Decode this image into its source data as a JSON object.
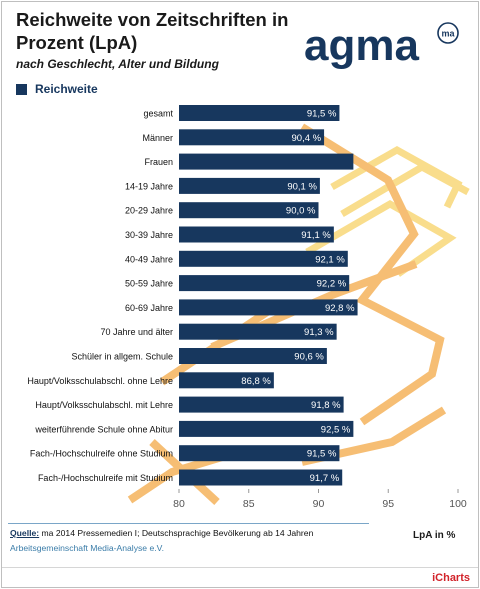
{
  "header": {
    "title": "Reichweite von Zeitschriften in Prozent (LpA)",
    "subtitle": "nach Geschlecht, Alter und Bildung"
  },
  "logo": {
    "word": "agma",
    "mark": "ma"
  },
  "legend": {
    "label": "Reichweite"
  },
  "chart_data": {
    "type": "bar",
    "orientation": "horizontal",
    "categories": [
      "gesamt",
      "Männer",
      "Frauen",
      "14-19 Jahre",
      "20-29 Jahre",
      "30-39 Jahre",
      "40-49 Jahre",
      "50-59 Jahre",
      "60-69 Jahre",
      "70 Jahre und älter",
      "Schüler in allgem. Schule",
      "Haupt/Volksschulabschl. ohne Lehre",
      "Haupt/Volksschulabschl. mit Lehre",
      "weiterführende Schule ohne Abitur",
      "Fach-/Hochschulreife ohne Studium",
      "Fach-/Hochschulreife mit Studium"
    ],
    "series": [
      {
        "name": "Reichweite",
        "values": [
          91.5,
          90.4,
          92.5,
          90.1,
          90.0,
          91.1,
          92.1,
          92.2,
          92.8,
          91.3,
          90.6,
          86.8,
          91.8,
          92.5,
          91.5,
          91.7
        ],
        "labels": [
          "91,5 %",
          "90,4 %",
          "",
          "90,1 %",
          "90,0 %",
          "91,1 %",
          "92,1 %",
          "92,2 %",
          "92,8 %",
          "91,3 %",
          "90,6 %",
          "86,8 %",
          "91,8 %",
          "92,5 %",
          "91,5 %",
          "91,7 %"
        ],
        "color": "#17375e"
      }
    ],
    "xlim": [
      80,
      100
    ],
    "xticks": [
      "80",
      "85",
      "90",
      "95",
      "100"
    ],
    "xlabel": "LpA in %",
    "legend_position": "top-left",
    "grid": false
  },
  "source": {
    "key": "Quelle:",
    "text": " ma 2014 Pressemedien I; Deutschsprachige Bevölkerung ab 14 Jahren",
    "line2": "Arbeitsgemeinschaft Media-Analyse e.V."
  },
  "footer": {
    "brand": "iCharts"
  },
  "colors": {
    "bar": "#17375e",
    "bar_text": "#ffffff",
    "deco_orange": "#f39c4a",
    "deco_yellow": "#f8d878",
    "brand": "#d2232a"
  }
}
